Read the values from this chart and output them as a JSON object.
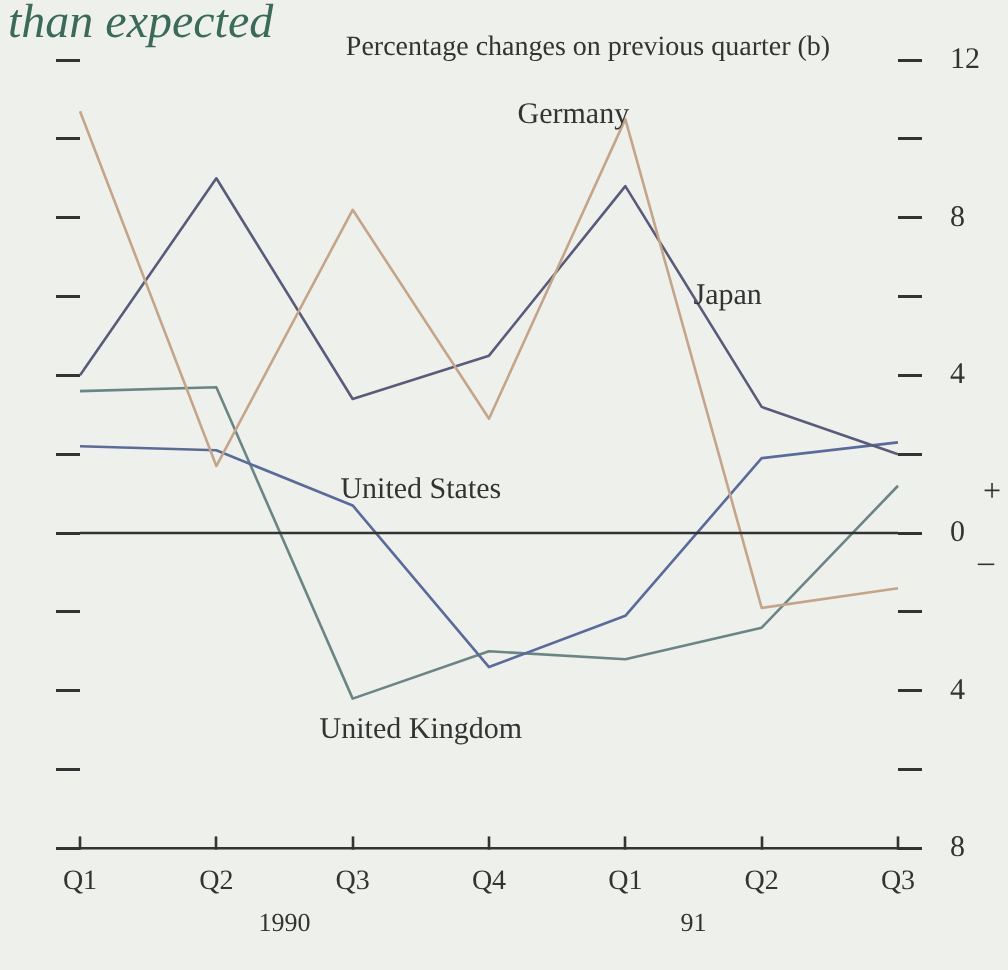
{
  "chart_data": {
    "type": "line",
    "title": "than expected",
    "subtitle": "Percentage changes on previous quarter (b)",
    "categories": [
      "Q1",
      "Q2",
      "Q3",
      "Q4",
      "Q1",
      "Q2",
      "Q3"
    ],
    "series": [
      {
        "name": "Germany",
        "color": "#c4a58a",
        "values": [
          10.7,
          1.7,
          8.2,
          2.9,
          10.5,
          -1.9,
          -1.4
        ]
      },
      {
        "name": "Japan",
        "color": "#5a5a7a",
        "values": [
          4.0,
          9.0,
          3.4,
          4.5,
          8.8,
          3.2,
          2.0
        ]
      },
      {
        "name": "United States",
        "color": "#5a6a9a",
        "values": [
          2.2,
          2.1,
          0.7,
          -3.4,
          -2.1,
          1.9,
          2.3
        ]
      },
      {
        "name": "United Kingdom",
        "color": "#6b8585",
        "values": [
          3.6,
          3.7,
          -4.2,
          -3.0,
          -3.2,
          -2.4,
          1.2
        ]
      }
    ],
    "ylim": [
      -8,
      12
    ],
    "yticks": [
      12,
      {
        "value": 10,
        "label": null
      },
      8,
      {
        "value": 6,
        "label": null
      },
      4,
      {
        "value": 2,
        "label": null
      },
      0,
      {
        "value": -2,
        "label": null
      },
      {
        "value": -4,
        "label": "4"
      },
      {
        "value": -6,
        "label": null
      },
      {
        "value": -8,
        "label": "8"
      }
    ],
    "ref_lines": [
      {
        "axis": "y",
        "value": 0,
        "color": "#333333"
      }
    ],
    "annotations": [
      "1990",
      "91",
      "+",
      "_"
    ],
    "grid": false,
    "legend": false,
    "marker": "none",
    "line_style": "solid"
  }
}
